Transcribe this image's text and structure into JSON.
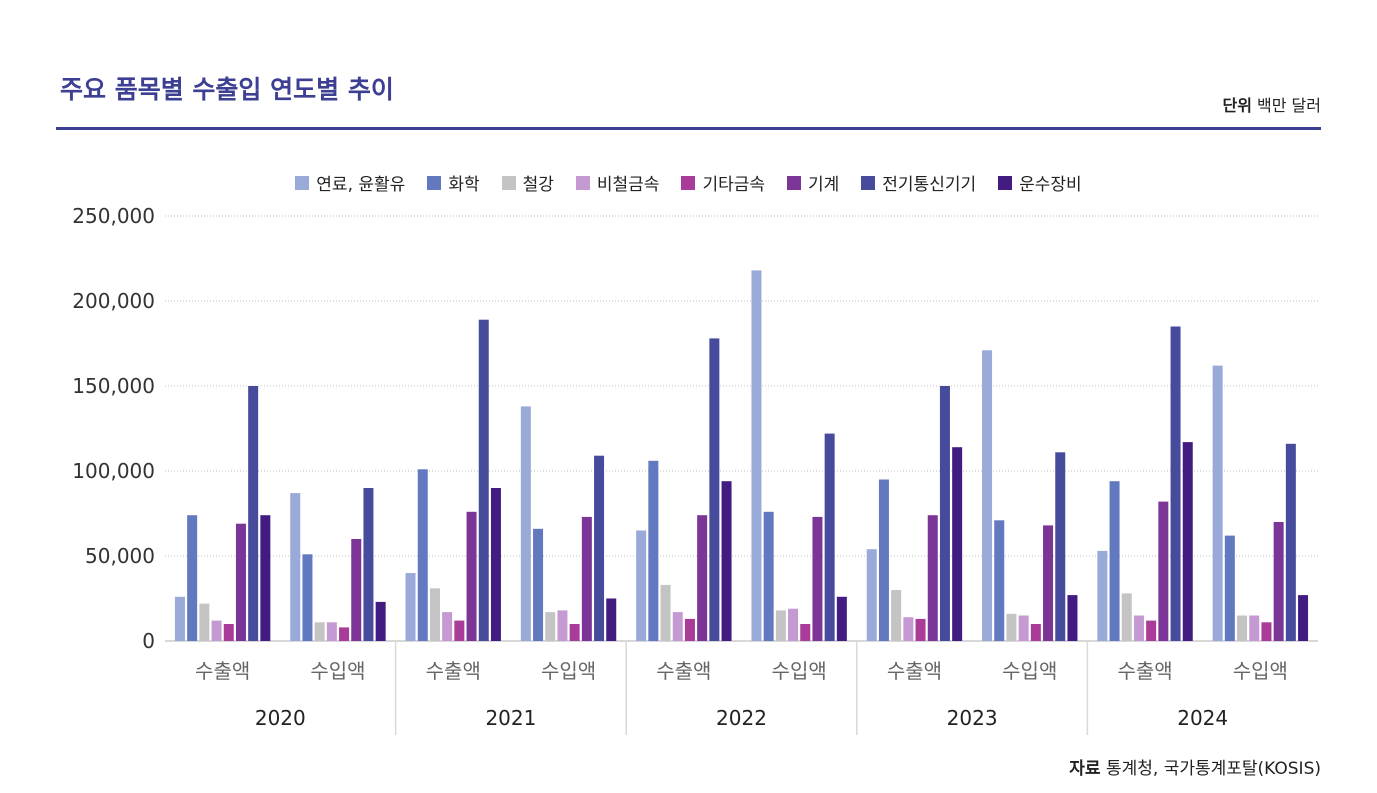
{
  "header": {
    "title": "주요 품목별 수출입 연도별 추이",
    "unit_label": "단위",
    "unit_value": "백만 달러"
  },
  "footer": {
    "source_label": "자료",
    "source_value": "통계청, 국가통계포탈(KOSIS)"
  },
  "chart_data": {
    "type": "bar",
    "years": [
      "2020",
      "2021",
      "2022",
      "2023",
      "2024"
    ],
    "subcategories": [
      "수출액",
      "수입액"
    ],
    "y_ticks": [
      "0",
      "50,000",
      "100,000",
      "150,000",
      "200,000",
      "250,000"
    ],
    "ylim": [
      0,
      250000
    ],
    "grid": true,
    "legend_position": "top",
    "series": [
      {
        "name": "연료, 윤활유",
        "color": "#9aaad8",
        "values": [
          26000,
          87000,
          40000,
          138000,
          65000,
          218000,
          54000,
          171000,
          53000,
          162000
        ]
      },
      {
        "name": "화학",
        "color": "#6279c0",
        "values": [
          74000,
          51000,
          101000,
          66000,
          106000,
          76000,
          95000,
          71000,
          94000,
          62000
        ]
      },
      {
        "name": "철강",
        "color": "#c4c4c4",
        "values": [
          22000,
          11000,
          31000,
          17000,
          33000,
          18000,
          30000,
          16000,
          28000,
          15000
        ]
      },
      {
        "name": "비철금속",
        "color": "#c59ad2",
        "values": [
          12000,
          11000,
          17000,
          18000,
          17000,
          19000,
          14000,
          15000,
          15000,
          15000
        ]
      },
      {
        "name": "기타금속",
        "color": "#a83c98",
        "values": [
          10000,
          8000,
          12000,
          10000,
          13000,
          10000,
          13000,
          10000,
          12000,
          11000
        ]
      },
      {
        "name": "기계",
        "color": "#7b3597",
        "values": [
          69000,
          60000,
          76000,
          73000,
          74000,
          73000,
          74000,
          68000,
          82000,
          70000
        ]
      },
      {
        "name": "전기통신기기",
        "color": "#474b9c",
        "values": [
          150000,
          90000,
          189000,
          109000,
          178000,
          122000,
          150000,
          111000,
          185000,
          116000
        ]
      },
      {
        "name": "운수장비",
        "color": "#431c82",
        "values": [
          74000,
          23000,
          90000,
          25000,
          94000,
          26000,
          114000,
          27000,
          117000,
          27000
        ]
      }
    ]
  }
}
